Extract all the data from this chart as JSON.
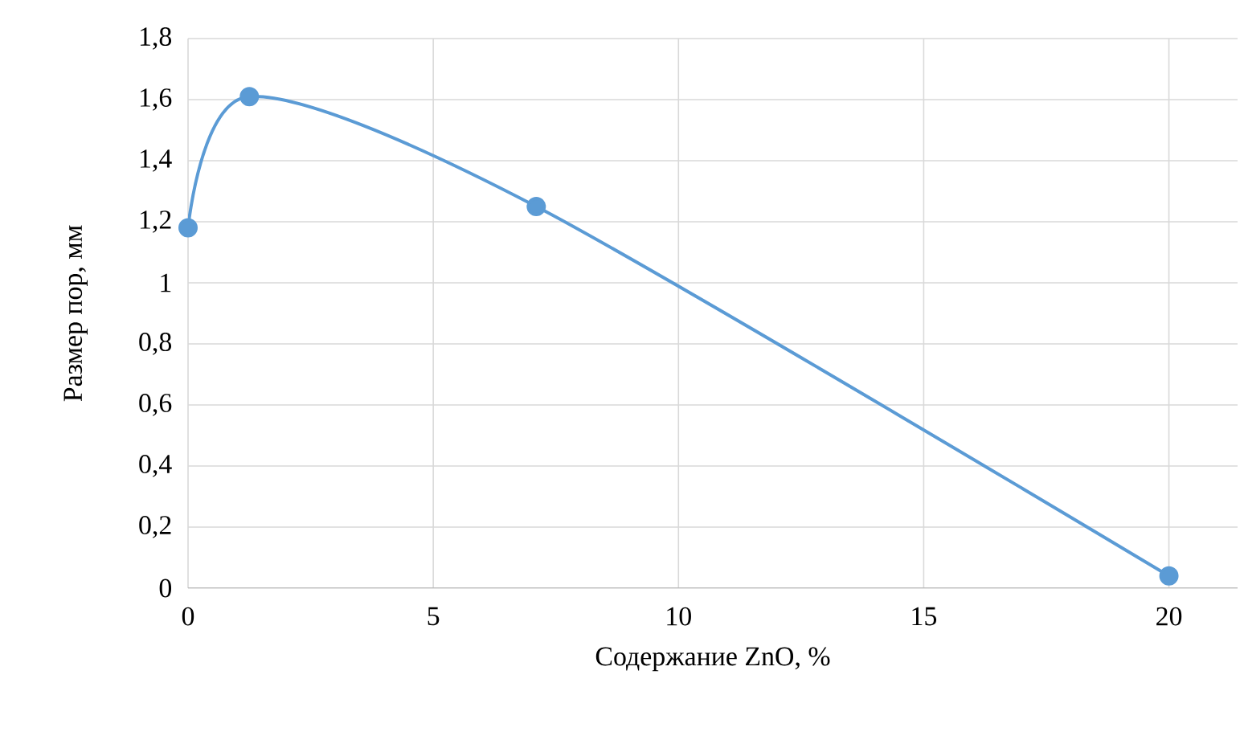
{
  "chart_data": {
    "type": "line",
    "xlabel": "Содержание ZnO, %",
    "ylabel": "Размер пор, мм",
    "x": [
      0,
      1.25,
      7.1,
      20
    ],
    "series": [
      {
        "color": "#5b9bd5",
        "values": [
          1.18,
          1.61,
          1.25,
          0.04
        ]
      }
    ],
    "xlim": [
      0,
      21.4
    ],
    "xticks": [
      0,
      5,
      10,
      15,
      20
    ],
    "ylim": [
      0,
      1.8
    ],
    "yticks": [
      {
        "value": 0,
        "label": "0"
      },
      {
        "value": 0.2,
        "label": "0,2"
      },
      {
        "value": 0.4,
        "label": "0,4"
      },
      {
        "value": 0.6,
        "label": "0,6"
      },
      {
        "value": 0.8,
        "label": "0,8"
      },
      {
        "value": 1,
        "label": "1"
      },
      {
        "value": 1.2,
        "label": "1,2"
      },
      {
        "value": 1.4,
        "label": "1,4"
      },
      {
        "value": 1.6,
        "label": "1,6"
      },
      {
        "value": 1.8,
        "label": "1,8"
      }
    ],
    "grid": true,
    "marker": "circle",
    "line_style": "solid"
  }
}
